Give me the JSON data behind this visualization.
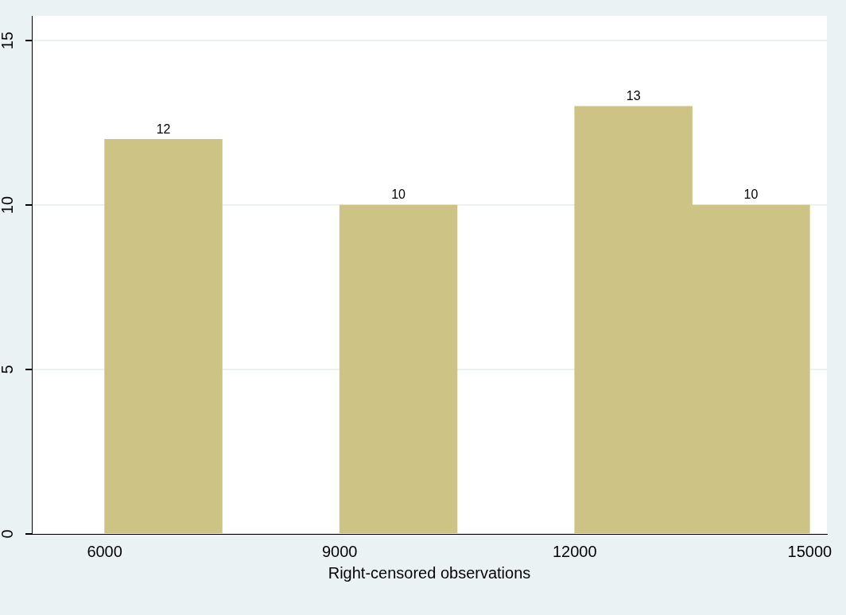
{
  "chart_data": {
    "type": "histogram",
    "xlabel": "Right-censored observations",
    "bins": [
      6000,
      7500,
      9000,
      10500,
      12000,
      13500,
      15000
    ],
    "values": [
      12,
      0,
      10,
      0,
      13,
      10
    ],
    "value_labels": [
      "12",
      null,
      "10",
      null,
      "13",
      "10"
    ],
    "color": "#cdc385",
    "xlim": [
      5070,
      15220
    ],
    "xticks": [
      6000,
      9000,
      12000,
      15000
    ],
    "ylim": [
      0,
      15.75
    ],
    "yticks": [
      0,
      5,
      10,
      15
    ],
    "grid": "y"
  }
}
